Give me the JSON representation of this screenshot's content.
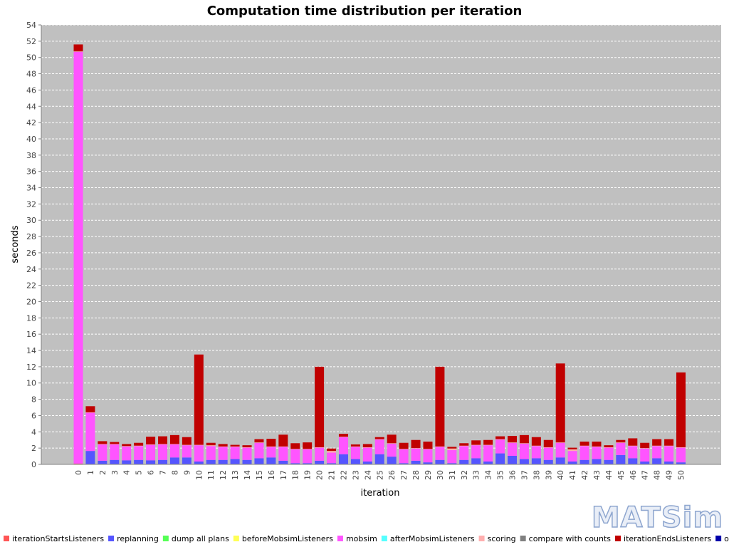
{
  "chart_data": {
    "type": "bar",
    "stacked": true,
    "title": "Computation time distribution per iteration",
    "xlabel": "iteration",
    "ylabel": "seconds",
    "ylim": [
      0,
      54
    ],
    "ytick_step": 2,
    "grid": true,
    "legend_position": "bottom",
    "categories": [
      "0",
      "1",
      "2",
      "3",
      "4",
      "5",
      "6",
      "7",
      "8",
      "9",
      "10",
      "11",
      "12",
      "13",
      "14",
      "15",
      "16",
      "17",
      "18",
      "19",
      "20",
      "21",
      "22",
      "23",
      "24",
      "25",
      "26",
      "27",
      "28",
      "29",
      "30",
      "31",
      "32",
      "33",
      "34",
      "35",
      "36",
      "37",
      "38",
      "39",
      "40",
      "41",
      "42",
      "43",
      "44",
      "45",
      "46",
      "47",
      "48",
      "49",
      "50"
    ],
    "series": [
      {
        "name": "iterationStartsListeners",
        "color": "#ff5555",
        "values": [
          0.1,
          0.05,
          0.05,
          0.05,
          0.05,
          0.05,
          0.05,
          0.05,
          0.05,
          0.05,
          0.05,
          0.05,
          0.05,
          0.05,
          0.05,
          0.05,
          0.05,
          0.05,
          0.05,
          0.05,
          0.05,
          0.05,
          0.05,
          0.05,
          0.05,
          0.05,
          0.05,
          0.05,
          0.05,
          0.05,
          0.05,
          0.05,
          0.05,
          0.05,
          0.05,
          0.05,
          0.05,
          0.05,
          0.05,
          0.05,
          0.05,
          0.05,
          0.05,
          0.05,
          0.05,
          0.05,
          0.05,
          0.05,
          0.05,
          0.05,
          0.05
        ]
      },
      {
        "name": "replanning",
        "color": "#5555ff",
        "values": [
          0.0,
          1.6,
          0.4,
          0.5,
          0.45,
          0.5,
          0.45,
          0.5,
          0.8,
          0.8,
          0.3,
          0.5,
          0.5,
          0.6,
          0.5,
          0.7,
          0.8,
          0.4,
          0.1,
          0.1,
          0.4,
          0.1,
          1.2,
          0.6,
          0.3,
          1.2,
          0.9,
          0.1,
          0.4,
          0.2,
          0.5,
          0.1,
          0.5,
          0.7,
          0.3,
          1.3,
          1.0,
          0.6,
          0.7,
          0.5,
          0.8,
          0.3,
          0.5,
          0.6,
          0.5,
          1.1,
          0.7,
          0.3,
          0.7,
          0.3,
          0.2
        ]
      },
      {
        "name": "dump all plans",
        "color": "#55ff55",
        "values": [
          0,
          0,
          0,
          0,
          0,
          0,
          0,
          0,
          0,
          0,
          0,
          0,
          0,
          0,
          0,
          0,
          0,
          0,
          0,
          0,
          0,
          0,
          0,
          0,
          0,
          0,
          0,
          0,
          0,
          0,
          0,
          0,
          0,
          0,
          0,
          0,
          0,
          0,
          0,
          0,
          0,
          0,
          0,
          0,
          0,
          0,
          0,
          0,
          0,
          0,
          0
        ]
      },
      {
        "name": "beforeMobsimListeners",
        "color": "#ffff55",
        "values": [
          0,
          0,
          0,
          0,
          0,
          0,
          0,
          0,
          0,
          0,
          0,
          0,
          0,
          0,
          0,
          0,
          0,
          0,
          0,
          0,
          0,
          0,
          0,
          0,
          0,
          0,
          0,
          0,
          0,
          0,
          0,
          0,
          0,
          0,
          0,
          0,
          0,
          0,
          0,
          0,
          0,
          0,
          0,
          0,
          0,
          0,
          0,
          0,
          0,
          0,
          0
        ]
      },
      {
        "name": "mobsim",
        "color": "#ff55ff",
        "values": [
          50.6,
          4.7,
          2.0,
          1.9,
          1.7,
          1.7,
          1.9,
          1.9,
          1.6,
          1.5,
          2.0,
          1.7,
          1.6,
          1.5,
          1.5,
          1.9,
          1.3,
          1.7,
          1.7,
          1.7,
          1.6,
          1.3,
          2.1,
          1.5,
          1.7,
          1.8,
          1.6,
          1.7,
          1.5,
          1.6,
          1.6,
          1.6,
          1.7,
          1.6,
          2.0,
          1.7,
          1.6,
          1.9,
          1.5,
          1.5,
          1.8,
          1.3,
          1.7,
          1.5,
          1.5,
          1.5,
          1.5,
          1.6,
          1.5,
          1.9,
          1.8
        ]
      },
      {
        "name": "afterMobsimListeners",
        "color": "#55ffff",
        "values": [
          0,
          0,
          0,
          0,
          0,
          0,
          0,
          0,
          0,
          0,
          0,
          0,
          0,
          0,
          0,
          0,
          0,
          0,
          0,
          0,
          0,
          0,
          0,
          0,
          0,
          0,
          0,
          0,
          0,
          0,
          0,
          0,
          0,
          0,
          0,
          0,
          0,
          0,
          0,
          0,
          0,
          0,
          0,
          0,
          0,
          0,
          0,
          0,
          0,
          0,
          0
        ]
      },
      {
        "name": "scoring",
        "color": "#ffafaf",
        "values": [
          0.05,
          0.05,
          0.05,
          0.05,
          0.05,
          0.05,
          0.05,
          0.05,
          0.05,
          0.05,
          0.05,
          0.1,
          0.05,
          0.05,
          0.05,
          0.05,
          0.05,
          0.05,
          0.05,
          0.05,
          0.05,
          0.2,
          0.05,
          0.05,
          0.05,
          0.05,
          0.05,
          0.05,
          0.05,
          0.05,
          0.05,
          0.2,
          0.05,
          0.05,
          0.05,
          0.05,
          0.05,
          0.05,
          0.05,
          0.05,
          0.05,
          0.2,
          0.05,
          0.05,
          0.05,
          0.05,
          0.05,
          0.05,
          0.05,
          0.05,
          0.05
        ]
      },
      {
        "name": "compare with counts",
        "color": "#808080",
        "values": [
          0,
          0,
          0,
          0,
          0,
          0,
          0,
          0,
          0,
          0,
          0,
          0,
          0,
          0,
          0,
          0,
          0,
          0,
          0,
          0,
          0,
          0,
          0,
          0,
          0,
          0,
          0,
          0,
          0,
          0,
          0,
          0,
          0,
          0,
          0,
          0,
          0,
          0,
          0,
          0,
          0,
          0,
          0,
          0,
          0,
          0,
          0,
          0,
          0,
          0,
          0
        ]
      },
      {
        "name": "iterationEndsListeners",
        "color": "#c00000",
        "values": [
          0.85,
          0.75,
          0.35,
          0.25,
          0.25,
          0.35,
          0.95,
          0.95,
          1.1,
          0.95,
          11.1,
          0.3,
          0.3,
          0.2,
          0.25,
          0.4,
          0.95,
          1.45,
          0.7,
          0.8,
          9.9,
          0.3,
          0.35,
          0.25,
          0.4,
          0.25,
          1.05,
          0.75,
          1.0,
          0.9,
          9.8,
          0.2,
          0.3,
          0.55,
          0.6,
          0.35,
          0.8,
          1.0,
          1.05,
          0.9,
          9.7,
          0.2,
          0.5,
          0.6,
          0.25,
          0.3,
          0.9,
          0.65,
          0.8,
          0.8,
          9.2
        ]
      },
      {
        "name": "other",
        "color": "#0000aa",
        "values": [
          0,
          0,
          0,
          0,
          0,
          0,
          0,
          0,
          0,
          0,
          0,
          0,
          0,
          0,
          0,
          0,
          0,
          0,
          0,
          0,
          0,
          0,
          0,
          0,
          0,
          0,
          0,
          0,
          0,
          0,
          0,
          0,
          0,
          0,
          0,
          0,
          0,
          0,
          0,
          0,
          0,
          0,
          0,
          0,
          0,
          0,
          0,
          0,
          0,
          0,
          0
        ]
      }
    ]
  },
  "logo": {
    "text": "MATSim"
  }
}
